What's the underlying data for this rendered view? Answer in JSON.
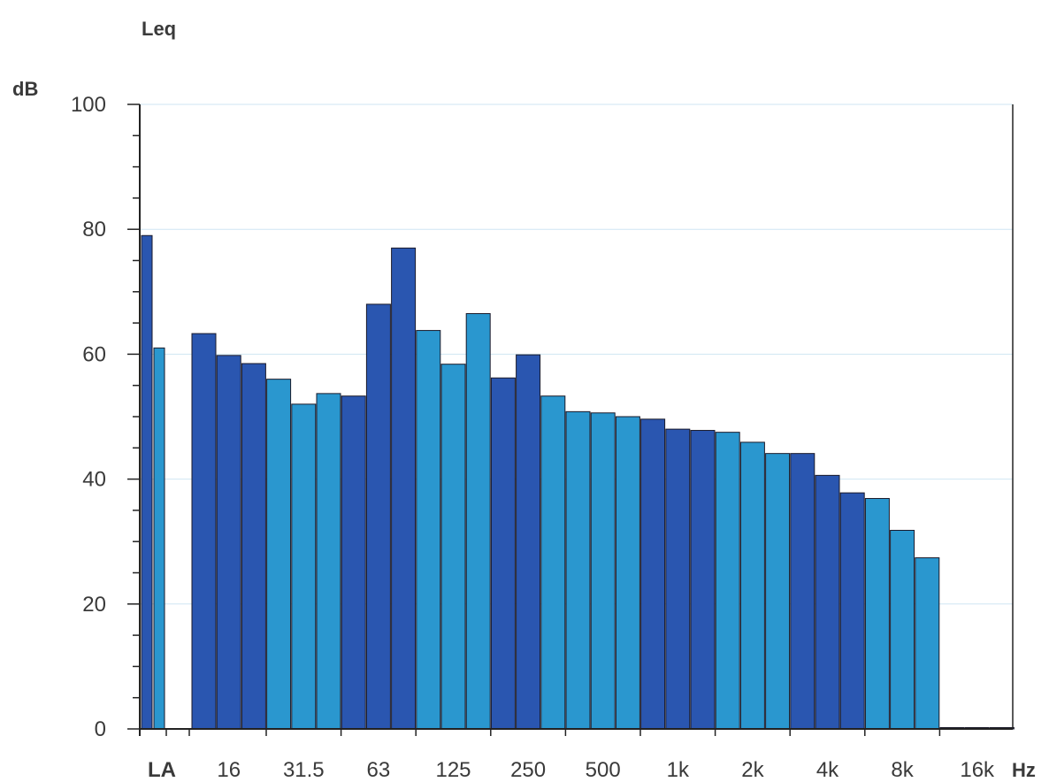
{
  "chart_data": {
    "type": "bar",
    "title": "Leq",
    "ylabel": "dB",
    "xunit": "Hz",
    "ylim": [
      0,
      100
    ],
    "yticks": [
      0,
      20,
      40,
      60,
      80,
      100
    ],
    "grid": true,
    "legend": "none",
    "colors": {
      "dark": "#2a56b0",
      "light": "#2a97cf",
      "grid": "#cfe6f3",
      "axis": "#222222"
    },
    "x_tick_labels": [
      "LA",
      "16",
      "31.5",
      "63",
      "125",
      "250",
      "500",
      "1k",
      "2k",
      "4k",
      "8k",
      "16k"
    ],
    "summary_bars": [
      {
        "label": "LA",
        "value": 79,
        "color": "dark"
      },
      {
        "label": "",
        "value": 61,
        "color": "light"
      }
    ],
    "bands": [
      {
        "freq": "12.5",
        "value": 63.3,
        "color": "dark"
      },
      {
        "freq": "16",
        "value": 59.8,
        "color": "dark"
      },
      {
        "freq": "20",
        "value": 58.5,
        "color": "dark"
      },
      {
        "freq": "25",
        "value": 56.0,
        "color": "light"
      },
      {
        "freq": "31.5",
        "value": 52.0,
        "color": "light"
      },
      {
        "freq": "40",
        "value": 53.7,
        "color": "light"
      },
      {
        "freq": "50",
        "value": 53.3,
        "color": "dark"
      },
      {
        "freq": "63",
        "value": 68.0,
        "color": "dark"
      },
      {
        "freq": "80",
        "value": 77.0,
        "color": "dark"
      },
      {
        "freq": "100",
        "value": 63.8,
        "color": "light"
      },
      {
        "freq": "125",
        "value": 58.4,
        "color": "light"
      },
      {
        "freq": "160",
        "value": 66.5,
        "color": "light"
      },
      {
        "freq": "200",
        "value": 56.2,
        "color": "dark"
      },
      {
        "freq": "250",
        "value": 59.9,
        "color": "dark"
      },
      {
        "freq": "315",
        "value": 53.3,
        "color": "light"
      },
      {
        "freq": "400",
        "value": 50.8,
        "color": "light"
      },
      {
        "freq": "500",
        "value": 50.6,
        "color": "light"
      },
      {
        "freq": "630",
        "value": 50.0,
        "color": "light"
      },
      {
        "freq": "800",
        "value": 49.6,
        "color": "dark"
      },
      {
        "freq": "1k",
        "value": 48.0,
        "color": "dark"
      },
      {
        "freq": "1.25k",
        "value": 47.8,
        "color": "dark"
      },
      {
        "freq": "1.6k",
        "value": 47.5,
        "color": "light"
      },
      {
        "freq": "2k",
        "value": 45.9,
        "color": "light"
      },
      {
        "freq": "2.5k",
        "value": 44.1,
        "color": "light"
      },
      {
        "freq": "3.15k",
        "value": 44.1,
        "color": "dark"
      },
      {
        "freq": "4k",
        "value": 40.6,
        "color": "dark"
      },
      {
        "freq": "5k",
        "value": 37.8,
        "color": "dark"
      },
      {
        "freq": "6.3k",
        "value": 36.9,
        "color": "light"
      },
      {
        "freq": "8k",
        "value": 31.8,
        "color": "light"
      },
      {
        "freq": "10k",
        "value": 27.4,
        "color": "light"
      },
      {
        "freq": "12.5k",
        "value": 0.2,
        "color": "dark"
      },
      {
        "freq": "16k",
        "value": 0.2,
        "color": "dark"
      },
      {
        "freq": "20k",
        "value": 0.2,
        "color": "dark"
      }
    ]
  }
}
